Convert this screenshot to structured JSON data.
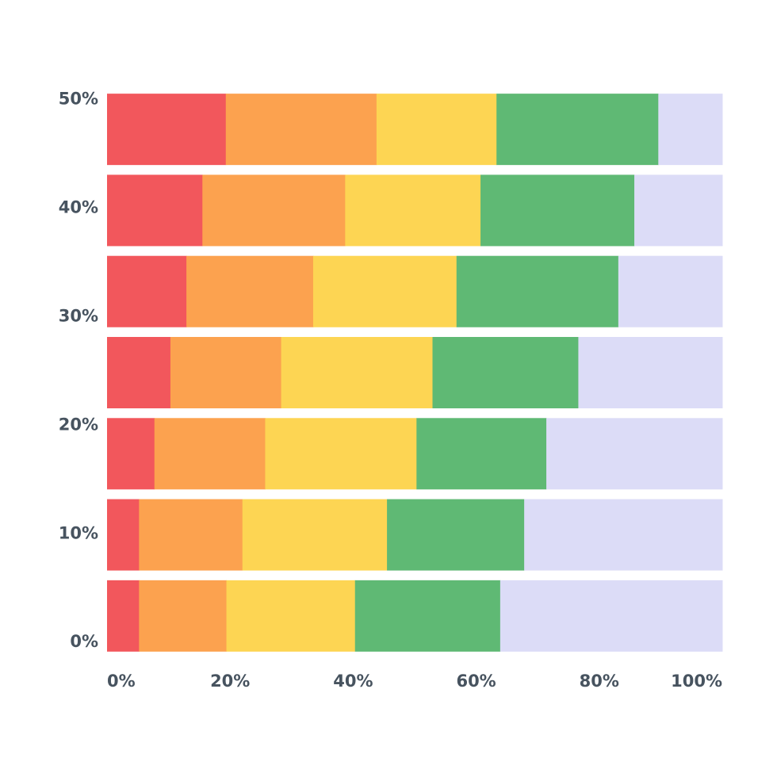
{
  "chart_data": {
    "type": "stacked_barh",
    "categories": [
      null,
      null,
      null,
      null,
      null,
      null,
      null
    ],
    "series": [
      {
        "color": "#f2575c",
        "values": [
          5.2,
          5.2,
          7.7,
          10.3,
          12.9,
          15.5,
          19.3
        ]
      },
      {
        "color": "#fca24f",
        "values": [
          14.2,
          16.8,
          18.0,
          18.0,
          20.6,
          23.2,
          24.5
        ]
      },
      {
        "color": "#fdd553",
        "values": [
          20.9,
          23.5,
          24.6,
          24.6,
          23.3,
          22.0,
          19.5
        ]
      },
      {
        "color": "#5fb974",
        "values": [
          23.6,
          22.3,
          21.1,
          23.7,
          26.3,
          25.0,
          26.3
        ]
      },
      {
        "color": "#dcdcf7",
        "values": [
          36.1,
          32.2,
          28.6,
          23.4,
          16.9,
          14.3,
          10.4
        ]
      }
    ],
    "xlim": [
      0,
      100
    ],
    "xticks": [
      {
        "value": 0,
        "label": "0%"
      },
      {
        "value": 20,
        "label": "20%"
      },
      {
        "value": 40,
        "label": "40%"
      },
      {
        "value": 60,
        "label": "60%"
      },
      {
        "value": 80,
        "label": "80%"
      },
      {
        "value": 100,
        "label": "100%"
      }
    ],
    "ylim": [
      -1.3,
      51
    ],
    "yticks": [
      {
        "value": 0,
        "label": "0%"
      },
      {
        "value": 10,
        "label": "10%"
      },
      {
        "value": 20,
        "label": "20%"
      },
      {
        "value": 30,
        "label": "30%"
      },
      {
        "value": 40,
        "label": "40%"
      },
      {
        "value": 50,
        "label": "50%"
      }
    ]
  }
}
